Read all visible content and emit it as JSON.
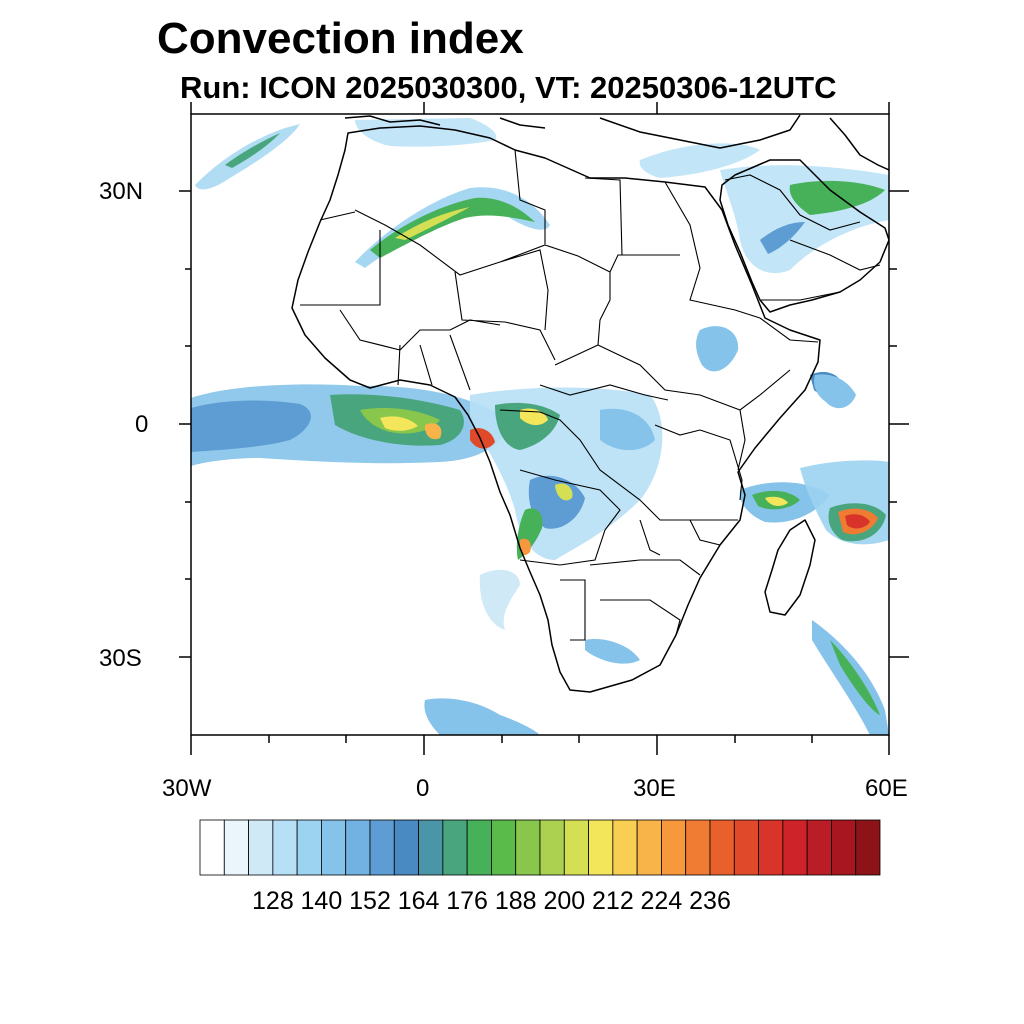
{
  "title": "Convection index",
  "subtitle": "Run: ICON 2025030300,  VT: 20250306-12UTC",
  "map": {
    "lon_range": [
      -30,
      60
    ],
    "lat_range": [
      -40,
      40
    ],
    "lat_tick_labels": [
      "30N",
      "0",
      "30S"
    ],
    "lon_tick_labels": [
      "30W",
      "0",
      "30E",
      "60E"
    ]
  },
  "colorbar": {
    "colors": [
      "#ffffff",
      "#eaf5fc",
      "#cfe9f7",
      "#b7e0f6",
      "#9cd3f1",
      "#85c3ea",
      "#72b2e3",
      "#5d9dd4",
      "#4a8ac3",
      "#4a95a8",
      "#48a57e",
      "#47b15a",
      "#5aba4a",
      "#88c64c",
      "#acd150",
      "#d5df54",
      "#f3e65a",
      "#f8cf52",
      "#f9b449",
      "#f7983d",
      "#f07b33",
      "#e8612d",
      "#e04a2b",
      "#d83429",
      "#cd2329",
      "#bb1d27",
      "#a8171f",
      "#8c1418"
    ],
    "labels": [
      "128",
      "140",
      "152",
      "164",
      "176",
      "188",
      "200",
      "212",
      "224",
      "236"
    ]
  }
}
